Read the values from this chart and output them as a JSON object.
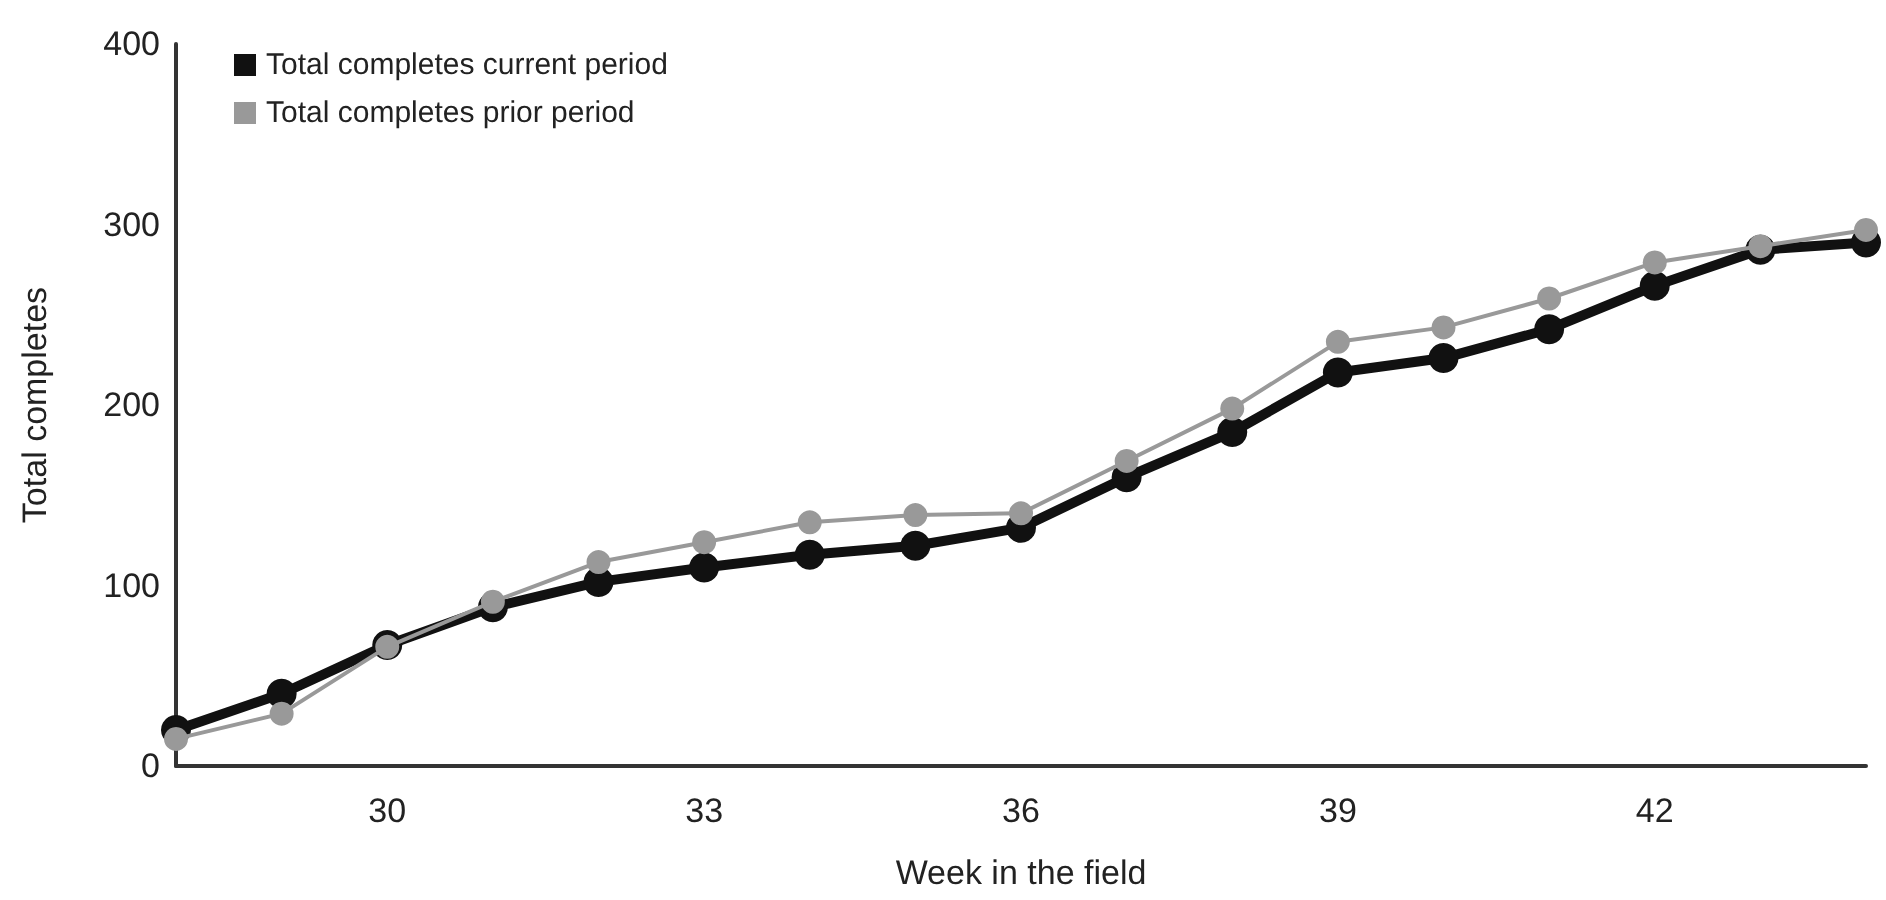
{
  "chart_data": {
    "type": "line",
    "xlabel": "Week in the field",
    "ylabel": "Total completes",
    "categories": [
      null,
      null,
      "30",
      null,
      null,
      "33",
      null,
      null,
      "36",
      null,
      null,
      "39",
      null,
      null,
      "42",
      null,
      null
    ],
    "series": [
      {
        "name": "Total completes current period",
        "color": "#111111",
        "values": [
          20,
          40,
          67,
          88,
          102,
          110,
          117,
          122,
          132,
          160,
          185,
          218,
          226,
          242,
          266,
          286,
          290
        ]
      },
      {
        "name": "Total completes prior period",
        "color": "#999999",
        "values": [
          15,
          29,
          66,
          91,
          113,
          124,
          135,
          139,
          140,
          169,
          198,
          235,
          243,
          259,
          279,
          288,
          297
        ]
      }
    ],
    "ylim": [
      0,
      400
    ],
    "yticks": [
      0,
      100,
      200,
      300,
      400
    ],
    "grid": false,
    "legend": "top left",
    "marker": "circle",
    "line_style": "solid"
  }
}
